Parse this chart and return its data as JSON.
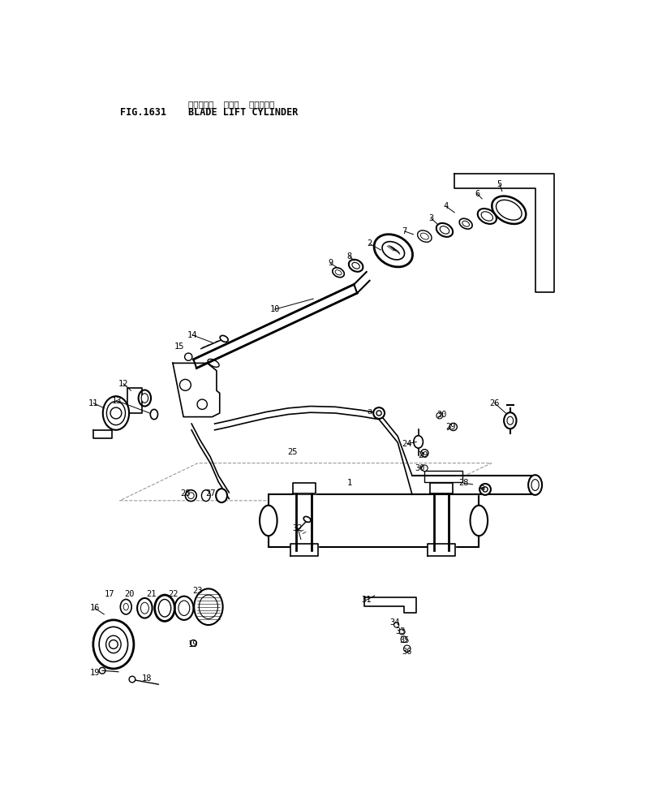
{
  "title_jp": "blade lift cylinder JP",
  "title_en": "BLADE LIFT CYLINDER",
  "fig_number": "FIG.1631",
  "bg_color": "#ffffff",
  "line_color": "#000000",
  "text_color": "#000000"
}
